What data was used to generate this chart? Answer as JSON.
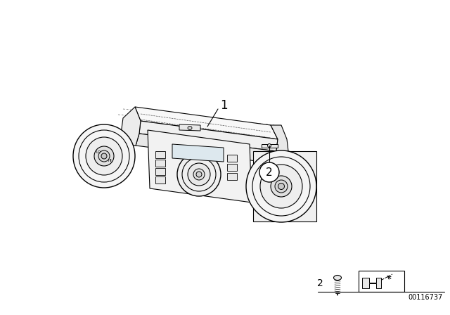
{
  "bg_color": "#ffffff",
  "line_color": "#000000",
  "fig_width": 6.4,
  "fig_height": 4.48,
  "dpi": 100,
  "part_number_label": "1",
  "callout_label": "2",
  "bottom_label": "2",
  "diagram_id": "00116737"
}
